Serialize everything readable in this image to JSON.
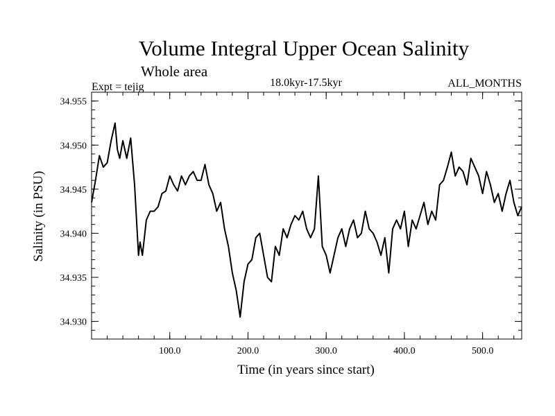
{
  "chart_data": {
    "type": "line",
    "title": "Volume Integral Upper Ocean Salinity",
    "subtitle": "Whole area",
    "experiment_label": "Expt = tejig",
    "period_label": "18.0kyr-17.5kyr",
    "months_label": "ALL_MONTHS",
    "xlabel": "Time (in years since start)",
    "ylabel": "Salinity (in PSU)",
    "xlim": [
      0,
      550
    ],
    "ylim": [
      34.928,
      34.956
    ],
    "x_ticks": [
      {
        "value": 100,
        "label": "100.0"
      },
      {
        "value": 200,
        "label": "200.0"
      },
      {
        "value": 300,
        "label": "300.0"
      },
      {
        "value": 400,
        "label": "400.0"
      },
      {
        "value": 500,
        "label": "500.0"
      }
    ],
    "y_ticks": [
      {
        "value": 34.93,
        "label": "34.930"
      },
      {
        "value": 34.935,
        "label": "34.935"
      },
      {
        "value": 34.94,
        "label": "34.940"
      },
      {
        "value": 34.945,
        "label": "34.945"
      },
      {
        "value": 34.95,
        "label": "34.950"
      },
      {
        "value": 34.955,
        "label": "34.955"
      }
    ],
    "x_minor_step": 20,
    "y_minor_step": 0.001,
    "grid": false,
    "series": [
      {
        "name": "salinity",
        "x": [
          0,
          5,
          10,
          15,
          20,
          25,
          30,
          33,
          36,
          40,
          45,
          50,
          55,
          60,
          62,
          65,
          70,
          75,
          80,
          85,
          90,
          95,
          100,
          105,
          110,
          115,
          120,
          125,
          130,
          135,
          140,
          145,
          150,
          155,
          160,
          165,
          170,
          175,
          180,
          185,
          190,
          195,
          200,
          205,
          210,
          215,
          220,
          225,
          230,
          235,
          240,
          245,
          250,
          255,
          260,
          265,
          270,
          275,
          280,
          285,
          290,
          295,
          300,
          305,
          310,
          315,
          320,
          325,
          330,
          335,
          340,
          345,
          350,
          355,
          360,
          365,
          370,
          375,
          380,
          385,
          390,
          395,
          400,
          405,
          410,
          415,
          420,
          425,
          430,
          435,
          440,
          445,
          450,
          455,
          460,
          465,
          470,
          475,
          480,
          485,
          490,
          495,
          500,
          505,
          510,
          515,
          520,
          525,
          530,
          535,
          540,
          545,
          550
        ],
        "y": [
          34.9435,
          34.946,
          34.9488,
          34.9475,
          34.948,
          34.9505,
          34.9525,
          34.9495,
          34.9485,
          34.9505,
          34.9485,
          34.9508,
          34.9455,
          34.9375,
          34.939,
          34.9375,
          34.9415,
          34.9425,
          34.9425,
          34.943,
          34.9445,
          34.9448,
          34.9465,
          34.9455,
          34.9448,
          34.9465,
          34.9455,
          34.9465,
          34.947,
          34.946,
          34.946,
          34.9478,
          34.9455,
          34.9445,
          34.9425,
          34.9435,
          34.9405,
          34.9385,
          34.9355,
          34.9335,
          34.9305,
          34.9345,
          34.9365,
          34.937,
          34.9395,
          34.94,
          34.9375,
          34.935,
          34.9345,
          34.9385,
          34.9375,
          34.9405,
          34.9395,
          34.941,
          34.942,
          34.9415,
          34.9425,
          34.9405,
          34.9395,
          34.9405,
          34.9465,
          34.9385,
          34.9375,
          34.9355,
          34.9375,
          34.9395,
          34.9405,
          34.9385,
          34.9405,
          34.9415,
          34.9395,
          34.94,
          34.9425,
          34.9405,
          34.94,
          34.939,
          34.9375,
          34.9395,
          34.9355,
          34.9405,
          34.9415,
          34.9405,
          34.9425,
          34.9385,
          34.9415,
          34.9405,
          34.942,
          34.9435,
          34.941,
          34.9425,
          34.9415,
          34.9455,
          34.946,
          34.9475,
          34.9492,
          34.9465,
          34.9475,
          34.947,
          34.9455,
          34.9485,
          34.9475,
          34.9465,
          34.9445,
          34.947,
          34.9455,
          34.9435,
          34.9445,
          34.9425,
          34.9445,
          34.946,
          34.9435,
          34.942,
          34.943
        ]
      }
    ]
  }
}
